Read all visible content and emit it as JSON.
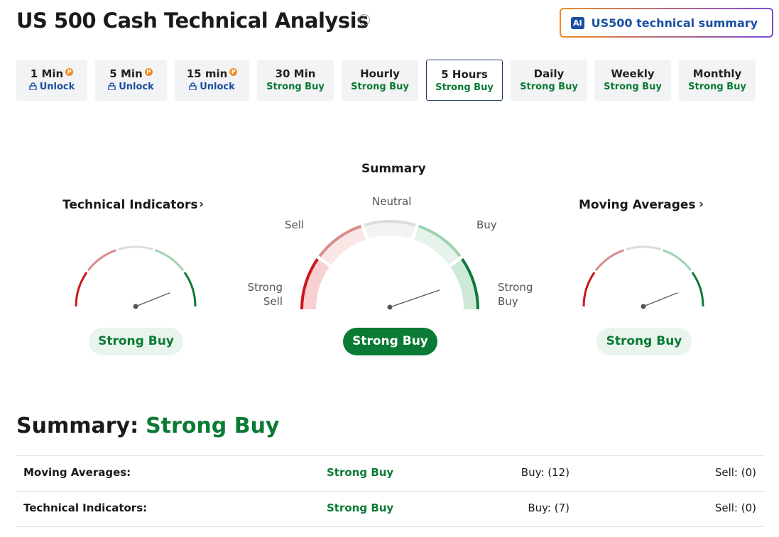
{
  "header": {
    "title": "US 500 Cash Technical Analysis",
    "ai_badge": "AI",
    "ai_button": "US500 technical summary"
  },
  "tabs": [
    {
      "label": "1 Min",
      "status": "Unlock",
      "locked": true
    },
    {
      "label": "5 Min",
      "status": "Unlock",
      "locked": true
    },
    {
      "label": "15 min",
      "status": "Unlock",
      "locked": true
    },
    {
      "label": "30 Min",
      "status": "Strong Buy"
    },
    {
      "label": "Hourly",
      "status": "Strong Buy"
    },
    {
      "label": "5 Hours",
      "status": "Strong Buy",
      "selected": true
    },
    {
      "label": "Daily",
      "status": "Strong Buy"
    },
    {
      "label": "Weekly",
      "status": "Strong Buy"
    },
    {
      "label": "Monthly",
      "status": "Strong Buy"
    }
  ],
  "gauges": {
    "left": {
      "title": "Technical Indicators",
      "result": "Strong Buy"
    },
    "center": {
      "title": "Summary",
      "result": "Strong Buy",
      "labels": {
        "strong_sell": "Strong Sell",
        "sell": "Sell",
        "neutral": "Neutral",
        "buy": "Buy",
        "strong_buy": "Strong Buy"
      }
    },
    "right": {
      "title": "Moving Averages",
      "result": "Strong Buy"
    }
  },
  "summary": {
    "label": "Summary:",
    "result": "Strong Buy",
    "rows": [
      {
        "name": "Moving Averages:",
        "signal": "Strong Buy",
        "buy": "Buy: (12)",
        "sell": "Sell: (0)"
      },
      {
        "name": "Technical Indicators:",
        "signal": "Strong Buy",
        "buy": "Buy: (7)",
        "sell": "Sell: (0)"
      }
    ]
  }
}
